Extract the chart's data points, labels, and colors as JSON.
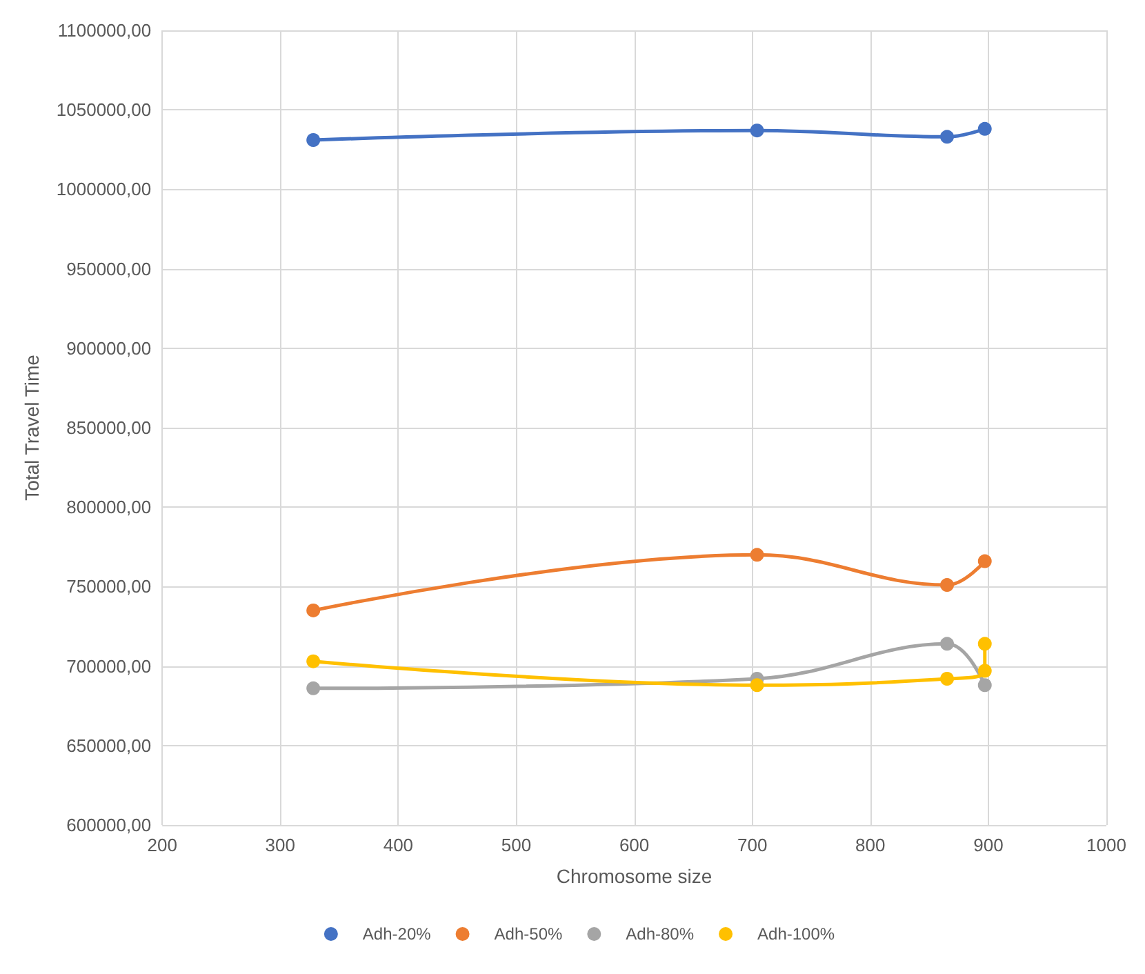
{
  "chart_data": {
    "type": "line",
    "xlabel": "Chromosome size",
    "ylabel": "Total Travel Time",
    "xlim": [
      200,
      1000
    ],
    "xticks": [
      200,
      300,
      400,
      500,
      600,
      700,
      800,
      900,
      1000
    ],
    "ylim": [
      600000,
      1100000
    ],
    "yticks": [
      {
        "value": 600000,
        "label": "600000,00"
      },
      {
        "value": 650000,
        "label": "650000,00"
      },
      {
        "value": 700000,
        "label": "700000,00"
      },
      {
        "value": 750000,
        "label": "750000,00"
      },
      {
        "value": 800000,
        "label": "800000,00"
      },
      {
        "value": 850000,
        "label": "850000,00"
      },
      {
        "value": 900000,
        "label": "900000,00"
      },
      {
        "value": 950000,
        "label": "950000,00"
      },
      {
        "value": 1000000,
        "label": "1000000,00"
      },
      {
        "value": 1050000,
        "label": "1050000,00"
      },
      {
        "value": 1100000,
        "label": "1100000,00"
      }
    ],
    "grid": true,
    "legend": "bottom",
    "marker": "circle",
    "line_style": "solid",
    "series": [
      {
        "name": "Adh-20%",
        "color": "#4472c4",
        "x": [
          328,
          704,
          865,
          897
        ],
        "values": [
          1031000,
          1037000,
          1033000,
          1038000
        ]
      },
      {
        "name": "Adh-50%",
        "color": "#ed7d31",
        "x": [
          328,
          704,
          865,
          897
        ],
        "values": [
          735000,
          770000,
          751000,
          766000
        ]
      },
      {
        "name": "Adh-80%",
        "color": "#a5a5a5",
        "x": [
          328,
          704,
          865,
          897
        ],
        "values": [
          686000,
          692000,
          714000,
          688000
        ]
      },
      {
        "name": "Adh-100%",
        "color": "#ffc000",
        "x": [
          328,
          704,
          865,
          897,
          897
        ],
        "values": [
          703000,
          688000,
          692000,
          697000,
          714000
        ]
      }
    ]
  }
}
